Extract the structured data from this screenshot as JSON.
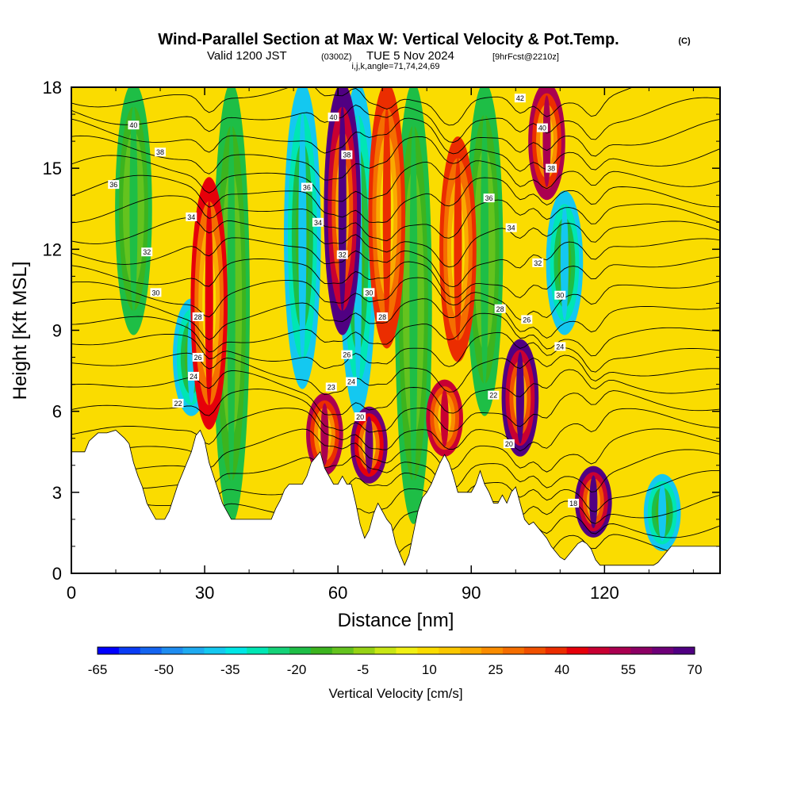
{
  "title": {
    "main": "Wind-Parallel Section at Max W: Vertical Velocity & Pot.Temp.",
    "copyright": "(C)",
    "valid_prefix": "Valid 1200 JST",
    "valid_utc": "(0300Z)",
    "valid_date": "TUE 5 Nov 2024",
    "forecast": "[9hrFcst@2210z]",
    "indices": "i,j,k,angle=71,74,24,69"
  },
  "chart_data": {
    "type": "heatmap",
    "xlabel": "Distance [nm]",
    "ylabel": "Height [Kft MSL]",
    "xlim": [
      0,
      146
    ],
    "ylim": [
      0,
      18
    ],
    "xticks": [
      0,
      30,
      60,
      90,
      120
    ],
    "yticks": [
      0,
      3,
      6,
      9,
      12,
      15,
      18
    ],
    "colorbar": {
      "label": "Vertical Velocity [cm/s]",
      "tick_labels": [
        "-65",
        "-50",
        "-35",
        "-20",
        "-5",
        "10",
        "25",
        "40",
        "55",
        "70"
      ],
      "levels": [
        -65,
        -60,
        -55,
        -50,
        -45,
        -40,
        -35,
        -30,
        -25,
        -20,
        -15,
        -10,
        -5,
        0,
        5,
        10,
        15,
        20,
        25,
        30,
        35,
        40,
        45,
        50,
        55,
        60,
        65,
        70
      ],
      "colors": [
        "#0000ff",
        "#0a3cf5",
        "#1464f0",
        "#1e8cf0",
        "#1eaaf0",
        "#14c8f0",
        "#00e6e6",
        "#00e6b4",
        "#14d278",
        "#1ebe46",
        "#3cb41e",
        "#64c31e",
        "#96d214",
        "#c8e614",
        "#f0f014",
        "#fadc00",
        "#fac800",
        "#faaa00",
        "#fa8c00",
        "#f56e00",
        "#f05000",
        "#eb2d00",
        "#e6000a",
        "#c80032",
        "#aa0050",
        "#8c0064",
        "#6e0078",
        "#500082"
      ]
    },
    "updrafts": [
      {
        "x": 31,
        "zmin": 5.5,
        "zmax": 14.5,
        "w": 45
      },
      {
        "x": 57,
        "zmin": 3.8,
        "zmax": 6.5,
        "w": 55
      },
      {
        "x": 61,
        "zmin": 9,
        "zmax": 18,
        "w": 70
      },
      {
        "x": 67,
        "zmin": 3.5,
        "zmax": 6,
        "w": 65
      },
      {
        "x": 71,
        "zmin": 8.5,
        "zmax": 18,
        "w": 40
      },
      {
        "x": 84,
        "zmin": 4.5,
        "zmax": 7,
        "w": 50
      },
      {
        "x": 87,
        "zmin": 8,
        "zmax": 16,
        "w": 40
      },
      {
        "x": 101,
        "zmin": 4.5,
        "zmax": 8.5,
        "w": 70
      },
      {
        "x": 107,
        "zmin": 14,
        "zmax": 18,
        "w": 55
      },
      {
        "x": 117.5,
        "zmin": 1.5,
        "zmax": 3.8,
        "w": 70
      }
    ],
    "downdrafts": [
      {
        "x": 14,
        "zmin": 9,
        "zmax": 18,
        "w": -20
      },
      {
        "x": 27,
        "zmin": 6,
        "zmax": 10,
        "w": -40
      },
      {
        "x": 36,
        "zmin": 2,
        "zmax": 18,
        "w": -20
      },
      {
        "x": 52,
        "zmin": 7,
        "zmax": 18,
        "w": -40
      },
      {
        "x": 64.5,
        "zmin": 6,
        "zmax": 18,
        "w": -40
      },
      {
        "x": 77,
        "zmin": 2,
        "zmax": 18,
        "w": -20
      },
      {
        "x": 93,
        "zmin": 6,
        "zmax": 18,
        "w": -20
      },
      {
        "x": 111,
        "zmin": 9,
        "zmax": 14,
        "w": -40
      },
      {
        "x": 133,
        "zmin": 1,
        "zmax": 3.5,
        "w": -40
      }
    ],
    "terrain_kft": [
      [
        0,
        4.5
      ],
      [
        3,
        4.5
      ],
      [
        4,
        4.9
      ],
      [
        6,
        5.2
      ],
      [
        8,
        5.2
      ],
      [
        10,
        5.3
      ],
      [
        12,
        5.0
      ],
      [
        13,
        4.8
      ],
      [
        14,
        4.1
      ],
      [
        15,
        3.6
      ],
      [
        16,
        3.2
      ],
      [
        17,
        2.6
      ],
      [
        18,
        2.3
      ],
      [
        19,
        2.0
      ],
      [
        21,
        2.0
      ],
      [
        22,
        2.3
      ],
      [
        23,
        2.8
      ],
      [
        24,
        3.3
      ],
      [
        25,
        3.7
      ],
      [
        26,
        4.1
      ],
      [
        27,
        4.5
      ],
      [
        28,
        5.1
      ],
      [
        29,
        5.3
      ],
      [
        30,
        4.9
      ],
      [
        31,
        4.1
      ],
      [
        32,
        3.6
      ],
      [
        33,
        3.1
      ],
      [
        34,
        2.6
      ],
      [
        35,
        2.3
      ],
      [
        36,
        2.0
      ],
      [
        45,
        2.0
      ],
      [
        46,
        2.4
      ],
      [
        47,
        2.7
      ],
      [
        48,
        3.1
      ],
      [
        49,
        3.3
      ],
      [
        52,
        3.3
      ],
      [
        53,
        3.6
      ],
      [
        54,
        4.1
      ],
      [
        56,
        4.5
      ],
      [
        57,
        3.9
      ],
      [
        58,
        3.6
      ],
      [
        59,
        3.3
      ],
      [
        60,
        3.3
      ],
      [
        61,
        3.6
      ],
      [
        62,
        3.3
      ],
      [
        63,
        3.3
      ],
      [
        64,
        2.6
      ],
      [
        65,
        1.8
      ],
      [
        66,
        1.3
      ],
      [
        67,
        1.6
      ],
      [
        68,
        2.2
      ],
      [
        69,
        2.6
      ],
      [
        70,
        2.3
      ],
      [
        71,
        2.0
      ],
      [
        72,
        1.8
      ],
      [
        73,
        1.1
      ],
      [
        74,
        0.7
      ],
      [
        75,
        0.3
      ],
      [
        76,
        0.7
      ],
      [
        77,
        1.5
      ],
      [
        78,
        2.3
      ],
      [
        79,
        2.8
      ],
      [
        80,
        3.0
      ],
      [
        81,
        3.3
      ],
      [
        82,
        3.7
      ],
      [
        83,
        4.1
      ],
      [
        84,
        4.4
      ],
      [
        85,
        4.1
      ],
      [
        86,
        3.6
      ],
      [
        87,
        3.0
      ],
      [
        90,
        3.0
      ],
      [
        91,
        3.3
      ],
      [
        92,
        3.8
      ],
      [
        93,
        3.3
      ],
      [
        94,
        3.0
      ],
      [
        95,
        2.6
      ],
      [
        96,
        2.6
      ],
      [
        97,
        2.9
      ],
      [
        98,
        2.6
      ],
      [
        99,
        3.0
      ],
      [
        100,
        3.2
      ],
      [
        101,
        2.6
      ],
      [
        102,
        2.0
      ],
      [
        103,
        1.8
      ],
      [
        104,
        1.9
      ],
      [
        105,
        1.7
      ],
      [
        106,
        1.5
      ],
      [
        107,
        1.3
      ],
      [
        108,
        1.0
      ],
      [
        109,
        0.8
      ],
      [
        110,
        0.6
      ],
      [
        111,
        0.5
      ],
      [
        112,
        0.7
      ],
      [
        113,
        0.9
      ],
      [
        114,
        1.1
      ],
      [
        115,
        1.2
      ],
      [
        116,
        1.1
      ],
      [
        117,
        0.9
      ],
      [
        118,
        0.5
      ],
      [
        119,
        0.3
      ],
      [
        131,
        0.3
      ],
      [
        132,
        0.4
      ],
      [
        133,
        0.6
      ],
      [
        134,
        0.8
      ],
      [
        135,
        1.0
      ],
      [
        146,
        1.0
      ]
    ],
    "theta_contour_labels": [
      {
        "text": "40",
        "x": 14,
        "z": 16.6
      },
      {
        "text": "38",
        "x": 20,
        "z": 15.6
      },
      {
        "text": "36",
        "x": 9.5,
        "z": 14.4
      },
      {
        "text": "34",
        "x": 27,
        "z": 13.2
      },
      {
        "text": "32",
        "x": 17,
        "z": 11.9
      },
      {
        "text": "30",
        "x": 19,
        "z": 10.4
      },
      {
        "text": "28",
        "x": 28.5,
        "z": 9.5
      },
      {
        "text": "26",
        "x": 28.5,
        "z": 8.0
      },
      {
        "text": "24",
        "x": 27.5,
        "z": 7.3
      },
      {
        "text": "22",
        "x": 24,
        "z": 6.3
      },
      {
        "text": "40",
        "x": 59,
        "z": 16.9
      },
      {
        "text": "38",
        "x": 62,
        "z": 15.5
      },
      {
        "text": "36",
        "x": 53,
        "z": 14.3
      },
      {
        "text": "34",
        "x": 55.5,
        "z": 13.0
      },
      {
        "text": "32",
        "x": 61,
        "z": 11.8
      },
      {
        "text": "30",
        "x": 67,
        "z": 10.4
      },
      {
        "text": "28",
        "x": 70,
        "z": 9.5
      },
      {
        "text": "26",
        "x": 62,
        "z": 8.1
      },
      {
        "text": "24",
        "x": 63,
        "z": 7.1
      },
      {
        "text": "23",
        "x": 58.5,
        "z": 6.9
      },
      {
        "text": "20",
        "x": 65,
        "z": 5.8
      },
      {
        "text": "42",
        "x": 101,
        "z": 17.6
      },
      {
        "text": "40",
        "x": 106,
        "z": 16.5
      },
      {
        "text": "38",
        "x": 108,
        "z": 15.0
      },
      {
        "text": "36",
        "x": 94,
        "z": 13.9
      },
      {
        "text": "34",
        "x": 99,
        "z": 12.8
      },
      {
        "text": "32",
        "x": 105,
        "z": 11.5
      },
      {
        "text": "30",
        "x": 110,
        "z": 10.3
      },
      {
        "text": "28",
        "x": 96.5,
        "z": 9.8
      },
      {
        "text": "26",
        "x": 102.5,
        "z": 9.4
      },
      {
        "text": "24",
        "x": 110,
        "z": 8.4
      },
      {
        "text": "22",
        "x": 95,
        "z": 6.6
      },
      {
        "text": "20",
        "x": 98.5,
        "z": 4.8
      },
      {
        "text": "18",
        "x": 113,
        "z": 2.6
      }
    ]
  }
}
